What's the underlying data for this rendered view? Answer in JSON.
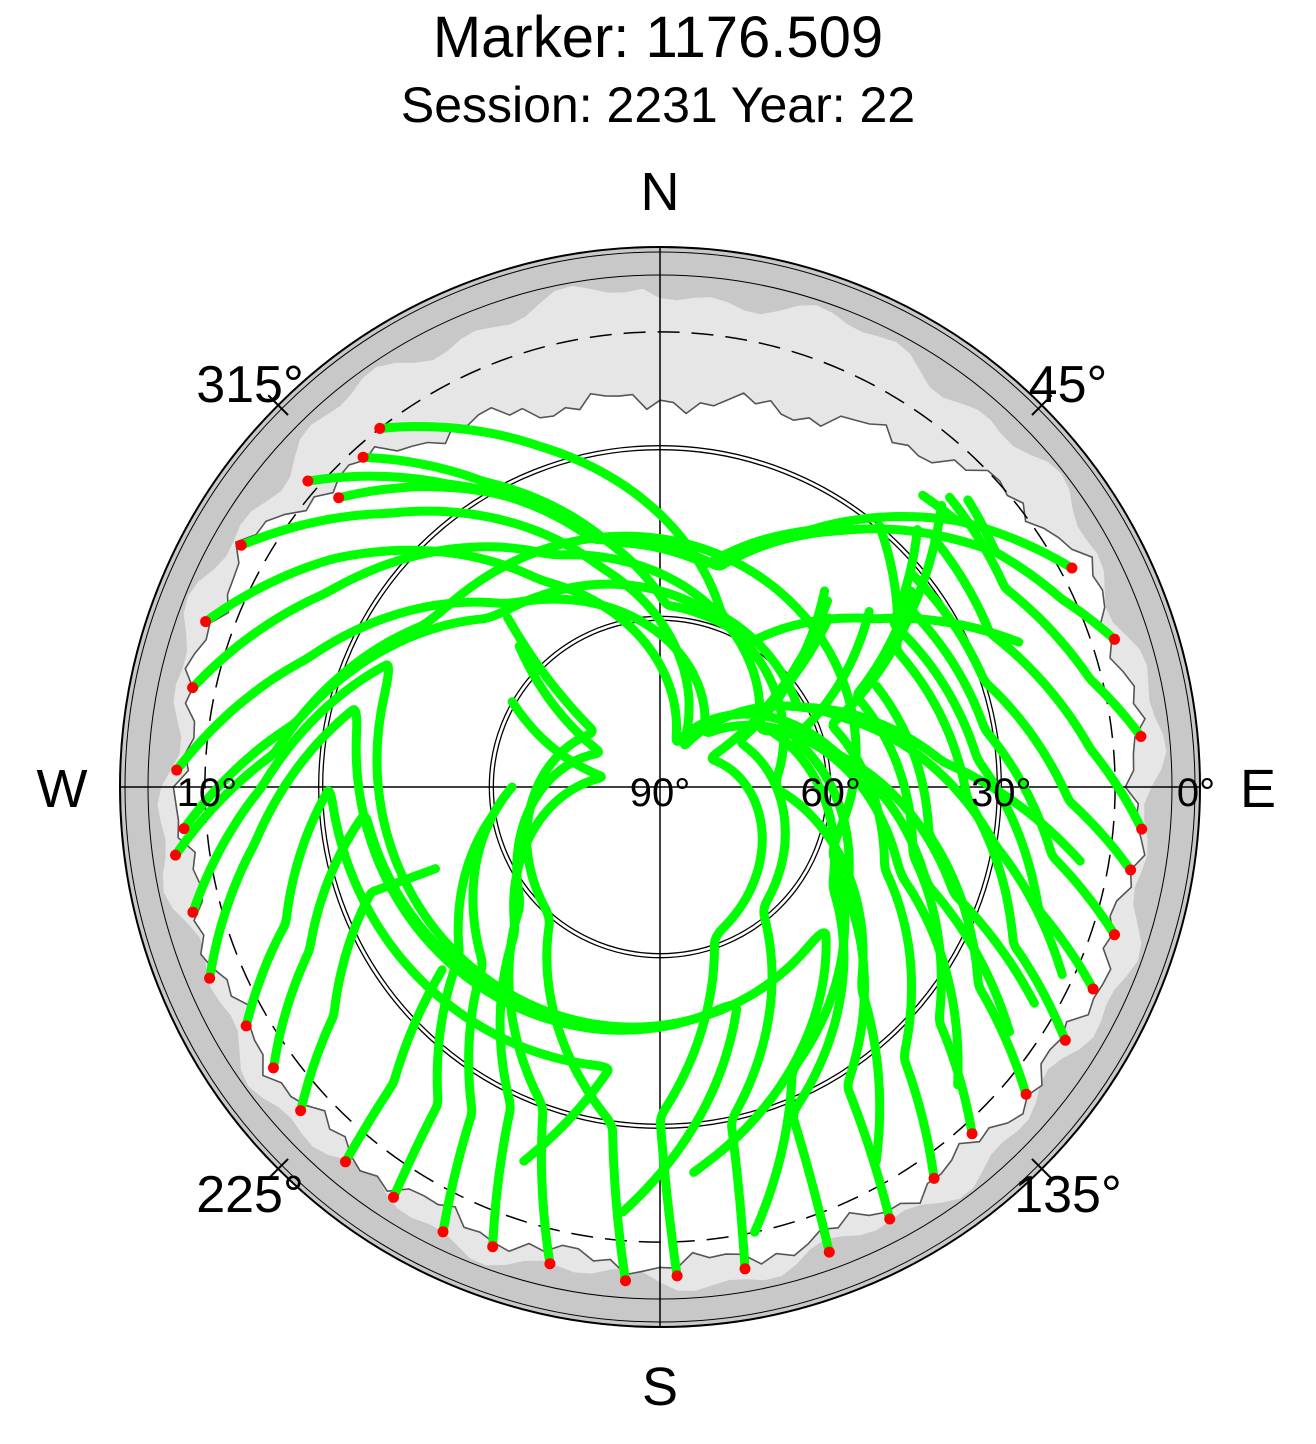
{
  "title": "Marker: 1176.509",
  "subtitle": "Session: 2231 Year: 22",
  "chart_data": {
    "type": "scatter",
    "projection": "polar-skyplot",
    "grid": true,
    "directions": {
      "north": "N",
      "south": "S",
      "east": "E",
      "west": "W"
    },
    "azimuth_labels": [
      {
        "az": 45,
        "text": "45°"
      },
      {
        "az": 135,
        "text": "135°"
      },
      {
        "az": 225,
        "text": "225°"
      },
      {
        "az": 315,
        "text": "315°"
      }
    ],
    "elevation_labels": [
      {
        "el": 0,
        "text": "0°"
      },
      {
        "el": 10,
        "text": "10°"
      },
      {
        "el": 30,
        "text": "30°"
      },
      {
        "el": 60,
        "text": "60°"
      },
      {
        "el": 90,
        "text": "90°"
      }
    ],
    "elevation_rings": [
      30,
      60
    ],
    "elevation_cutoff_dashed": 10,
    "colors": {
      "track": "#00ff00",
      "track_start": "#ff0000",
      "mask_outer": "#c8c8c8",
      "mask_inner": "#e6e6e6",
      "grid": "#000000"
    },
    "tracks": [
      {
        "az": [
          311,
          325,
          345,
          15,
          35,
          55
        ],
        "el": [
          8,
          25,
          45,
          50,
          35,
          18
        ]
      },
      {
        "az": [
          318,
          330,
          348,
          12,
          30,
          48
        ],
        "el": [
          12,
          28,
          46,
          50,
          38,
          20
        ]
      },
      {
        "az": [
          312,
          332,
          2,
          32,
          52,
          68
        ],
        "el": [
          14,
          32,
          58,
          60,
          42,
          22
        ]
      },
      {
        "az": [
          322,
          340,
          20,
          60,
          85,
          100
        ],
        "el": [
          10,
          26,
          58,
          62,
          40,
          15
        ]
      },
      {
        "az": [
          300,
          315,
          345,
          30,
          70,
          100,
          115
        ],
        "el": [
          5,
          22,
          50,
          82,
          55,
          30,
          12
        ]
      },
      {
        "az": [
          290,
          305,
          330,
          20,
          80,
          110,
          120
        ],
        "el": [
          5,
          20,
          48,
          82,
          58,
          35,
          14
        ]
      },
      {
        "az": [
          282,
          300,
          335,
          60,
          110,
          125
        ],
        "el": [
          6,
          22,
          45,
          70,
          40,
          15
        ]
      },
      {
        "az": [
          272,
          290,
          320,
          40,
          110,
          135
        ],
        "el": [
          5,
          24,
          48,
          78,
          45,
          16
        ]
      },
      {
        "az": [
          265,
          280,
          315,
          90,
          135,
          150
        ],
        "el": [
          6,
          25,
          48,
          70,
          40,
          14
        ]
      },
      {
        "az": [
          262,
          275,
          305,
          110,
          155,
          168
        ],
        "el": [
          4,
          22,
          40,
          58,
          35,
          10
        ]
      },
      {
        "az": [
          255,
          270,
          295,
          130,
          175
        ],
        "el": [
          5,
          20,
          38,
          52,
          22
        ]
      },
      {
        "az": [
          247,
          262,
          285,
          160,
          185
        ],
        "el": [
          4,
          18,
          35,
          50,
          15
        ]
      },
      {
        "az": [
          240,
          250,
          270,
          190,
          200
        ],
        "el": [
          6,
          20,
          32,
          40,
          20
        ]
      },
      {
        "az": [
          234,
          245,
          265,
          210
        ],
        "el": [
          6,
          22,
          38,
          45
        ]
      },
      {
        "az": [
          228,
          235,
          250,
          250
        ],
        "el": [
          5,
          20,
          36,
          48
        ]
      },
      {
        "az": [
          220,
          222,
          230
        ],
        "el": [
          4,
          20,
          40
        ]
      },
      {
        "az": [
          213,
          215,
          230,
          260
        ],
        "el": [
          4,
          22,
          44,
          60
        ]
      },
      {
        "az": [
          206,
          210,
          225,
          270
        ],
        "el": [
          3,
          24,
          46,
          64
        ]
      },
      {
        "az": [
          200,
          205,
          225,
          280,
          300
        ],
        "el": [
          4,
          28,
          54,
          80,
          60
        ]
      },
      {
        "az": [
          193,
          200,
          230,
          300,
          315
        ],
        "el": [
          4,
          30,
          58,
          78,
          55
        ]
      },
      {
        "az": [
          184,
          188,
          220,
          310,
          318
        ],
        "el": [
          3,
          30,
          60,
          75,
          50
        ]
      },
      {
        "az": [
          178,
          180,
          160,
          60,
          45
        ],
        "el": [
          4,
          32,
          62,
          80,
          48
        ]
      },
      {
        "az": [
          170,
          168,
          140,
          60,
          40
        ],
        "el": [
          4,
          30,
          62,
          74,
          45
        ]
      },
      {
        "az": [
          160,
          158,
          120,
          55,
          42
        ],
        "el": [
          3,
          28,
          55,
          70,
          46
        ]
      },
      {
        "az": [
          152,
          148,
          120,
          70,
          50
        ],
        "el": [
          4,
          28,
          52,
          65,
          42
        ]
      },
      {
        "az": [
          145,
          138,
          110,
          70,
          55
        ],
        "el": [
          6,
          26,
          48,
          58,
          36
        ]
      },
      {
        "az": [
          138,
          130,
          105,
          65,
          52
        ],
        "el": [
          8,
          26,
          44,
          52,
          34
        ]
      },
      {
        "az": [
          130,
          122,
          100,
          65
        ],
        "el": [
          6,
          24,
          42,
          48
        ]
      },
      {
        "az": [
          122,
          114,
          92,
          60,
          40
        ],
        "el": [
          6,
          22,
          36,
          42,
          30
        ]
      },
      {
        "az": [
          115,
          108,
          85,
          55,
          45
        ],
        "el": [
          6,
          20,
          34,
          40,
          26
        ]
      },
      {
        "az": [
          108,
          100,
          80,
          55,
          45
        ],
        "el": [
          6,
          20,
          32,
          36,
          20
        ]
      },
      {
        "az": [
          100,
          92,
          72,
          50
        ],
        "el": [
          6,
          18,
          30,
          32
        ]
      },
      {
        "az": [
          95,
          85,
          65,
          48
        ],
        "el": [
          5,
          14,
          26,
          25
        ]
      },
      {
        "az": [
          84,
          76,
          60,
          45
        ],
        "el": [
          5,
          12,
          20,
          18
        ]
      },
      {
        "az": [
          72,
          65,
          55,
          47
        ],
        "el": [
          6,
          12,
          18,
          16
        ]
      },
      {
        "az": [
          62,
          55,
          48,
          42
        ],
        "el": [
          8,
          14,
          20,
          21
        ]
      }
    ]
  }
}
